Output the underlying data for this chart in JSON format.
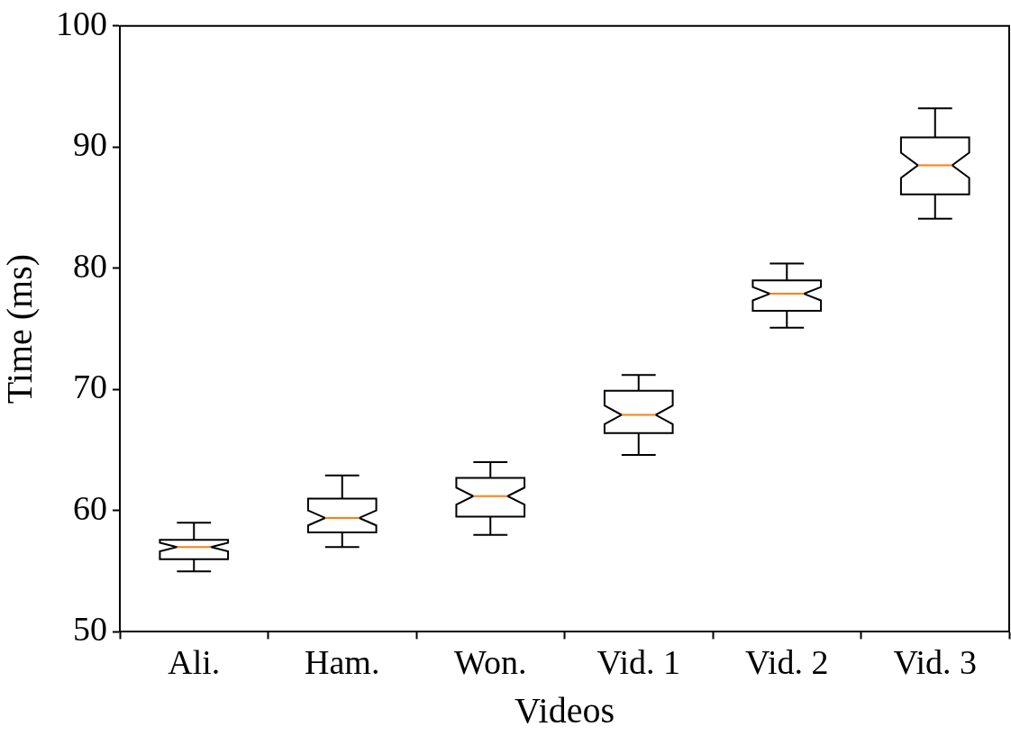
{
  "chart_data": {
    "type": "box",
    "xlabel": "Videos",
    "ylabel": "Time (ms)",
    "categories": [
      "Ali.",
      "Ham.",
      "Won.",
      "Vid. 1",
      "Vid. 2",
      "Vid. 3"
    ],
    "boxes": [
      {
        "low": 55.0,
        "q1": 56.0,
        "median": 57.0,
        "q3": 57.6,
        "high": 59.0
      },
      {
        "low": 57.0,
        "q1": 58.2,
        "median": 59.4,
        "q3": 61.0,
        "high": 62.9
      },
      {
        "low": 58.0,
        "q1": 59.5,
        "median": 61.2,
        "q3": 62.7,
        "high": 64.0
      },
      {
        "low": 64.6,
        "q1": 66.4,
        "median": 67.9,
        "q3": 69.9,
        "high": 71.2
      },
      {
        "low": 75.1,
        "q1": 76.5,
        "median": 77.9,
        "q3": 79.0,
        "high": 80.4
      },
      {
        "low": 84.1,
        "q1": 86.1,
        "median": 88.5,
        "q3": 90.8,
        "high": 93.2
      }
    ],
    "color": "#000000",
    "ylim": [
      50,
      100
    ],
    "yticks": [
      50,
      60,
      70,
      80,
      90,
      100
    ],
    "grid": false
  }
}
